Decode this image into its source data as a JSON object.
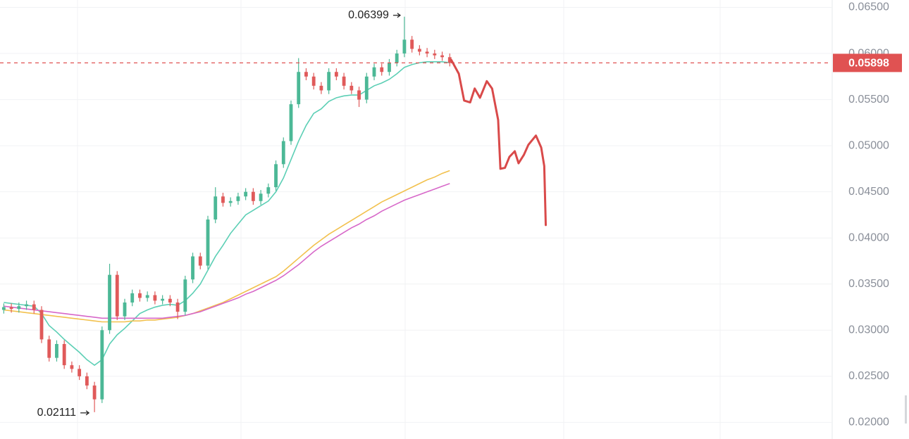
{
  "chart_data": {
    "type": "candlestick",
    "xlim": [
      -0.5,
      109.5
    ],
    "ylim": [
      0.0182,
      0.0658
    ],
    "yticks": [
      {
        "value": 0.02,
        "label": "0.02000"
      },
      {
        "value": 0.025,
        "label": "0.02500"
      },
      {
        "value": 0.03,
        "label": "0.03000"
      },
      {
        "value": 0.035,
        "label": "0.03500"
      },
      {
        "value": 0.04,
        "label": "0.04000"
      },
      {
        "value": 0.045,
        "label": "0.04500"
      },
      {
        "value": 0.05,
        "label": "0.05000"
      },
      {
        "value": 0.055,
        "label": "0.05500"
      },
      {
        "value": 0.06,
        "label": "0.06000"
      },
      {
        "value": 0.065,
        "label": "0.06500"
      }
    ],
    "grid": true,
    "up_color": "#4cb896",
    "down_color": "#e05a5a",
    "open": [
      0.0322,
      0.0325,
      0.0323,
      0.0326,
      0.0328,
      0.0322,
      0.029,
      0.027,
      0.0285,
      0.0262,
      0.0258,
      0.025,
      0.024,
      0.0225,
      0.03,
      0.036,
      0.0315,
      0.033,
      0.034,
      0.0335,
      0.0338,
      0.0332,
      0.0334,
      0.033,
      0.032,
      0.0355,
      0.038,
      0.037,
      0.042,
      0.0445,
      0.0438,
      0.044,
      0.0445,
      0.045,
      0.044,
      0.0448,
      0.0455,
      0.048,
      0.0505,
      0.0545,
      0.058,
      0.0575,
      0.0565,
      0.056,
      0.058,
      0.0575,
      0.0565,
      0.056,
      0.055,
      0.0575,
      0.0585,
      0.058,
      0.059,
      0.06,
      0.0615,
      0.0605,
      0.0602,
      0.06,
      0.0598,
      0.0596
    ],
    "high": [
      0.0329,
      0.0329,
      0.033,
      0.0332,
      0.0332,
      0.0326,
      0.0294,
      0.0289,
      0.0289,
      0.0266,
      0.0262,
      0.0254,
      0.0244,
      0.0304,
      0.0372,
      0.0364,
      0.0334,
      0.0344,
      0.0344,
      0.0342,
      0.0342,
      0.0338,
      0.0338,
      0.0334,
      0.0359,
      0.0384,
      0.0384,
      0.0424,
      0.0455,
      0.0449,
      0.0444,
      0.0449,
      0.0454,
      0.0454,
      0.0452,
      0.0459,
      0.0484,
      0.0509,
      0.0549,
      0.0595,
      0.0584,
      0.0579,
      0.0569,
      0.0584,
      0.0584,
      0.0579,
      0.0569,
      0.0564,
      0.0579,
      0.0589,
      0.0589,
      0.0594,
      0.0604,
      0.06399,
      0.0619,
      0.0609,
      0.0606,
      0.0604,
      0.0602,
      0.06
    ],
    "low": [
      0.0318,
      0.0319,
      0.0319,
      0.0322,
      0.0318,
      0.0286,
      0.0266,
      0.0266,
      0.0258,
      0.0254,
      0.0246,
      0.0236,
      0.02111,
      0.0221,
      0.0296,
      0.0311,
      0.0311,
      0.0326,
      0.0331,
      0.0331,
      0.0328,
      0.0328,
      0.0326,
      0.0312,
      0.0316,
      0.0351,
      0.0366,
      0.0366,
      0.0416,
      0.0434,
      0.0434,
      0.0436,
      0.0441,
      0.0436,
      0.0436,
      0.0444,
      0.0451,
      0.0476,
      0.0501,
      0.0541,
      0.0571,
      0.0561,
      0.0556,
      0.0556,
      0.0571,
      0.0561,
      0.0556,
      0.0542,
      0.0546,
      0.0571,
      0.0576,
      0.0576,
      0.0586,
      0.0596,
      0.0601,
      0.0598,
      0.0596,
      0.0594,
      0.0592,
      0.0586
    ],
    "close": [
      0.0325,
      0.0323,
      0.0326,
      0.0328,
      0.0322,
      0.029,
      0.027,
      0.0285,
      0.0262,
      0.0258,
      0.025,
      0.024,
      0.0225,
      0.03,
      0.036,
      0.0315,
      0.033,
      0.034,
      0.0335,
      0.0338,
      0.0332,
      0.0334,
      0.033,
      0.032,
      0.0355,
      0.038,
      0.037,
      0.042,
      0.0445,
      0.0438,
      0.044,
      0.0445,
      0.045,
      0.044,
      0.0448,
      0.0455,
      0.048,
      0.0505,
      0.0545,
      0.058,
      0.0575,
      0.0565,
      0.056,
      0.058,
      0.0575,
      0.0565,
      0.056,
      0.055,
      0.0575,
      0.0585,
      0.058,
      0.059,
      0.06,
      0.0615,
      0.0605,
      0.0602,
      0.06,
      0.0598,
      0.0596,
      0.05898
    ],
    "lines": [
      {
        "color": "#5ccfb5",
        "values": [
          0.033,
          0.0329,
          0.0328,
          0.0327,
          0.0326,
          0.0318,
          0.0305,
          0.0298,
          0.029,
          0.0283,
          0.0276,
          0.0268,
          0.0262,
          0.0268,
          0.0285,
          0.0295,
          0.0302,
          0.031,
          0.0318,
          0.0322,
          0.0325,
          0.0327,
          0.0328,
          0.0327,
          0.0332,
          0.034,
          0.035,
          0.0365,
          0.038,
          0.0392,
          0.0405,
          0.0415,
          0.0425,
          0.043,
          0.0435,
          0.044,
          0.045,
          0.0465,
          0.0485,
          0.0505,
          0.0522,
          0.0535,
          0.054,
          0.0548,
          0.0552,
          0.0554,
          0.0555,
          0.0555,
          0.056,
          0.0565,
          0.0568,
          0.0572,
          0.0578,
          0.0585,
          0.0588,
          0.059,
          0.0591,
          0.0591,
          0.0591,
          0.059
        ]
      },
      {
        "color": "#f2c14e",
        "values": [
          0.0322,
          0.0321,
          0.032,
          0.0319,
          0.0318,
          0.0317,
          0.0316,
          0.0315,
          0.0314,
          0.0313,
          0.0312,
          0.0311,
          0.031,
          0.0309,
          0.0309,
          0.0309,
          0.0309,
          0.031,
          0.031,
          0.0311,
          0.0311,
          0.0312,
          0.0313,
          0.0314,
          0.0316,
          0.0318,
          0.0321,
          0.0324,
          0.0327,
          0.033,
          0.0334,
          0.0338,
          0.0342,
          0.0346,
          0.035,
          0.0354,
          0.0358,
          0.0364,
          0.0371,
          0.0378,
          0.0385,
          0.0392,
          0.0398,
          0.0404,
          0.0409,
          0.0414,
          0.0419,
          0.0424,
          0.0429,
          0.0434,
          0.0439,
          0.0443,
          0.0447,
          0.0451,
          0.0455,
          0.0459,
          0.0463,
          0.0466,
          0.047,
          0.0473
        ]
      },
      {
        "color": "#d768c9",
        "values": [
          0.0326,
          0.0325,
          0.0324,
          0.0323,
          0.0322,
          0.0321,
          0.032,
          0.0319,
          0.0318,
          0.0317,
          0.0316,
          0.0315,
          0.0314,
          0.0313,
          0.0313,
          0.0313,
          0.0313,
          0.0313,
          0.0313,
          0.0313,
          0.0313,
          0.0313,
          0.0314,
          0.0315,
          0.0316,
          0.0318,
          0.032,
          0.0323,
          0.0326,
          0.0329,
          0.0332,
          0.0335,
          0.0339,
          0.0342,
          0.0346,
          0.035,
          0.0354,
          0.0359,
          0.0365,
          0.0371,
          0.0378,
          0.0385,
          0.0391,
          0.0396,
          0.0401,
          0.0406,
          0.0411,
          0.0415,
          0.042,
          0.0424,
          0.0429,
          0.0433,
          0.0437,
          0.0441,
          0.0444,
          0.0447,
          0.045,
          0.0453,
          0.0456,
          0.0459
        ]
      }
    ],
    "projection": {
      "color": "#d94a4a",
      "x": [
        59.2,
        60.2,
        60.9,
        61.7,
        62.3,
        63.0,
        63.9,
        64.6,
        65.4,
        65.7,
        66.3,
        66.9,
        67.6,
        68.1,
        68.8,
        69.4,
        70.4,
        71.1,
        71.5,
        71.7
      ],
      "values": [
        0.0593,
        0.0578,
        0.0549,
        0.0547,
        0.0562,
        0.0552,
        0.057,
        0.0562,
        0.0528,
        0.0475,
        0.0476,
        0.0488,
        0.0494,
        0.0481,
        0.049,
        0.0501,
        0.0511,
        0.0498,
        0.0478,
        0.0414
      ]
    },
    "current_price": 0.05898,
    "current_price_color": "#e05252",
    "high_annotation": 0.06399,
    "low_annotation": 0.02111
  }
}
